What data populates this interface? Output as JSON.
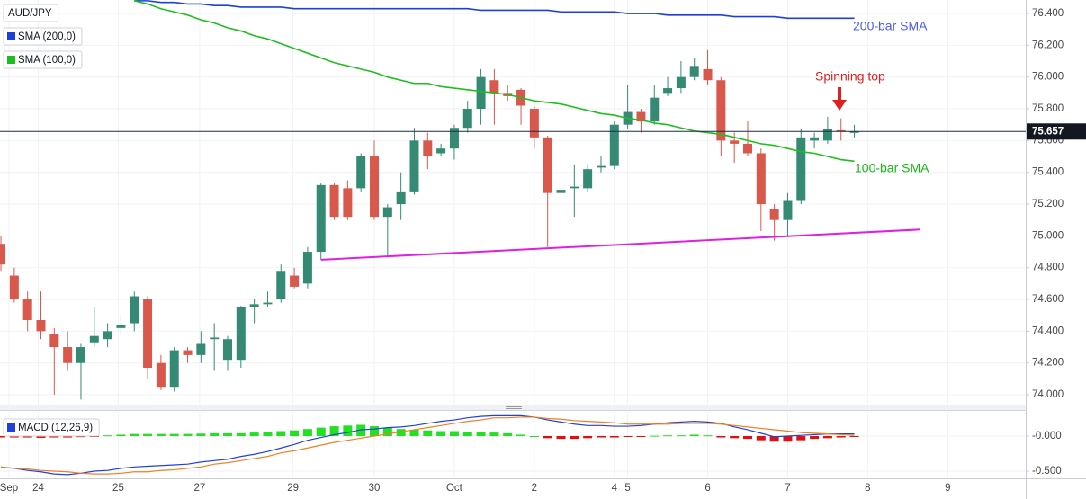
{
  "chart_data": [
    {
      "type": "candlestick",
      "title": "AUD/JPY",
      "up_color": "#358a74",
      "down_color": "#d9584c",
      "xlim": [
        -0.07,
        76.85
      ],
      "xticks": [
        {
          "value": 0.6,
          "label": "Sep"
        },
        {
          "value": 2.8,
          "label": "24"
        },
        {
          "value": 8.8,
          "label": "25"
        },
        {
          "value": 14.9,
          "label": "27"
        },
        {
          "value": 21.9,
          "label": "29"
        },
        {
          "value": 28,
          "label": "30"
        },
        {
          "value": 34,
          "label": "Oct"
        },
        {
          "value": 40,
          "label": "2"
        },
        {
          "value": 46,
          "label": "4"
        },
        {
          "value": 47,
          "label": "5"
        },
        {
          "value": 53,
          "label": "6"
        },
        {
          "value": 59,
          "label": "7"
        },
        {
          "value": 65,
          "label": "8"
        },
        {
          "value": 71,
          "label": "9"
        }
      ],
      "ylim": [
        73.938,
        76.485
      ],
      "yticks": [
        {
          "value": 74.0,
          "label": "74.000"
        },
        {
          "value": 74.2,
          "label": "74.200"
        },
        {
          "value": 74.4,
          "label": "74.400"
        },
        {
          "value": 74.6,
          "label": "74.600"
        },
        {
          "value": 74.8,
          "label": "74.800"
        },
        {
          "value": 75.0,
          "label": "75.000"
        },
        {
          "value": 75.2,
          "label": "75.200"
        },
        {
          "value": 75.4,
          "label": "75.400"
        },
        {
          "value": 75.6,
          "label": "75.600"
        },
        {
          "value": 75.8,
          "label": "75.800"
        },
        {
          "value": 76.0,
          "label": "76.000"
        },
        {
          "value": 76.2,
          "label": "76.200"
        },
        {
          "value": 76.4,
          "label": "76.400"
        }
      ],
      "grid": true,
      "open": [
        74.95,
        74.75,
        74.6,
        74.47,
        74.38,
        74.3,
        74.2,
        74.33,
        74.35,
        74.42,
        74.45,
        74.6,
        74.2,
        74.05,
        74.28,
        74.25,
        74.35,
        74.22,
        74.22,
        74.55,
        74.57,
        74.6,
        74.75,
        74.7,
        74.9,
        75.32,
        75.3,
        75.3,
        75.5,
        75.12,
        75.2,
        75.28,
        75.6,
        75.52,
        75.55,
        75.68,
        75.8,
        75.98,
        75.9,
        75.92,
        75.8,
        75.62,
        75.27,
        75.3,
        75.3,
        75.43,
        75.44,
        75.7,
        75.78,
        75.72,
        75.9,
        75.93,
        76.0,
        76.05,
        75.98,
        75.6,
        75.58,
        75.52,
        75.17,
        75.1,
        75.22,
        75.6,
        75.6,
        75.665,
        75.65
      ],
      "high": [
        75.0,
        74.8,
        74.65,
        74.65,
        74.42,
        74.4,
        74.32,
        74.55,
        74.45,
        74.5,
        74.65,
        74.62,
        74.25,
        74.3,
        74.3,
        74.4,
        74.45,
        74.37,
        74.56,
        74.6,
        74.65,
        74.82,
        74.8,
        74.93,
        75.33,
        75.33,
        75.35,
        75.52,
        75.6,
        75.2,
        75.4,
        75.68,
        75.65,
        75.58,
        75.7,
        75.85,
        76.05,
        76.05,
        75.95,
        75.93,
        75.82,
        75.63,
        75.35,
        75.45,
        75.45,
        75.5,
        75.72,
        75.95,
        75.8,
        75.95,
        76.0,
        76.1,
        76.12,
        76.17,
        76.0,
        75.65,
        75.72,
        75.55,
        75.2,
        75.27,
        75.67,
        75.65,
        75.75,
        75.74,
        75.7
      ],
      "low": [
        74.78,
        74.58,
        74.4,
        74.35,
        74.0,
        74.15,
        73.97,
        74.3,
        74.3,
        74.38,
        74.4,
        74.1,
        74.03,
        74.02,
        74.2,
        74.2,
        74.15,
        74.15,
        74.17,
        74.45,
        74.55,
        74.58,
        74.67,
        74.67,
        74.85,
        75.1,
        75.1,
        75.28,
        75.1,
        74.87,
        75.1,
        75.26,
        75.42,
        75.5,
        75.48,
        75.65,
        75.7,
        75.7,
        75.85,
        75.7,
        75.55,
        74.93,
        75.1,
        75.12,
        75.28,
        75.4,
        75.42,
        75.67,
        75.65,
        75.7,
        75.88,
        75.9,
        75.98,
        75.95,
        75.5,
        75.46,
        75.5,
        75.03,
        74.97,
        75.0,
        75.2,
        75.55,
        75.58,
        75.6,
        75.62
      ],
      "close": [
        74.82,
        74.6,
        74.47,
        74.4,
        74.3,
        74.2,
        74.3,
        74.37,
        74.4,
        74.44,
        74.62,
        74.17,
        74.05,
        74.28,
        74.25,
        74.32,
        74.36,
        74.35,
        74.55,
        74.57,
        74.58,
        74.78,
        74.68,
        74.9,
        75.32,
        75.12,
        75.12,
        75.5,
        75.12,
        75.18,
        75.28,
        75.6,
        75.5,
        75.55,
        75.68,
        75.8,
        76.0,
        75.9,
        75.88,
        75.82,
        75.62,
        75.27,
        75.29,
        75.31,
        75.42,
        75.44,
        75.7,
        75.78,
        75.72,
        75.87,
        75.93,
        76.0,
        76.07,
        75.98,
        75.6,
        75.58,
        75.52,
        75.2,
        75.1,
        75.22,
        75.62,
        75.62,
        75.67,
        75.655,
        75.657
      ],
      "series": [
        {
          "name": "SMA (200,0)",
          "color": "#1e3fd8",
          "values": [
            null,
            null,
            null,
            null,
            null,
            null,
            null,
            null,
            null,
            null,
            76.48,
            76.48,
            76.47,
            76.47,
            76.46,
            76.46,
            76.45,
            76.45,
            76.44,
            76.44,
            76.44,
            76.44,
            76.43,
            76.43,
            76.43,
            76.43,
            76.43,
            76.43,
            76.43,
            76.43,
            76.43,
            76.43,
            76.43,
            76.43,
            76.43,
            76.43,
            76.42,
            76.42,
            76.42,
            76.42,
            76.42,
            76.42,
            76.41,
            76.41,
            76.41,
            76.41,
            76.41,
            76.4,
            76.4,
            76.4,
            76.39,
            76.39,
            76.39,
            76.39,
            76.39,
            76.38,
            76.38,
            76.38,
            76.38,
            76.37,
            76.37,
            76.37,
            76.37,
            76.37,
            76.37
          ]
        },
        {
          "name": "SMA (100,0)",
          "color": "#1fbe1f",
          "values": [
            null,
            null,
            null,
            null,
            null,
            null,
            null,
            null,
            null,
            null,
            76.48,
            76.46,
            76.43,
            76.41,
            76.39,
            76.36,
            76.34,
            76.31,
            76.29,
            76.26,
            76.24,
            76.21,
            76.18,
            76.15,
            76.12,
            76.09,
            76.07,
            76.05,
            76.03,
            76.0,
            75.98,
            75.96,
            75.96,
            75.94,
            75.93,
            75.92,
            75.91,
            75.9,
            75.89,
            75.87,
            75.85,
            75.84,
            75.83,
            75.81,
            75.79,
            75.77,
            75.76,
            75.74,
            75.73,
            75.71,
            75.7,
            75.68,
            75.66,
            75.65,
            75.64,
            75.62,
            75.6,
            75.58,
            75.57,
            75.55,
            75.53,
            75.52,
            75.5,
            75.48,
            75.47
          ]
        }
      ],
      "trendlines": [
        {
          "color": "#e020e0",
          "x": [
            24.0,
            68.9
          ],
          "values": [
            74.85,
            75.04
          ]
        }
      ],
      "last_price": 75.657,
      "annotations": [
        {
          "text": "200-bar SMA",
          "color": "#4a5cf0"
        },
        {
          "text": "100-bar SMA",
          "color": "#18b818"
        },
        {
          "text": "Spinning top",
          "color": "#e02020"
        }
      ]
    },
    {
      "type": "macd",
      "title": "MACD (12,26,9)",
      "xlim": [
        -0.07,
        76.85
      ],
      "ylim": [
        -0.577,
        0.346
      ],
      "yticks": [
        {
          "value": 0,
          "label": "-0.000"
        },
        {
          "value": -0.5,
          "label": "-0.500"
        }
      ],
      "grid": true,
      "histogram": {
        "up_color": "#22e022",
        "down_color": "#e01010",
        "values": [
          -0.02,
          -0.02,
          -0.02,
          -0.025,
          -0.02,
          -0.02,
          -0.015,
          -0.01,
          0.01,
          0.02,
          0.03,
          0.03,
          0.03,
          0.03,
          0.03,
          0.035,
          0.04,
          0.04,
          0.04,
          0.05,
          0.06,
          0.07,
          0.08,
          0.1,
          0.12,
          0.14,
          0.15,
          0.16,
          0.14,
          0.12,
          0.1,
          0.09,
          0.08,
          0.07,
          0.07,
          0.06,
          0.06,
          0.05,
          0.04,
          0.02,
          0.0,
          -0.03,
          -0.04,
          -0.04,
          -0.03,
          -0.02,
          -0.02,
          -0.01,
          -0.005,
          0.005,
          0.01,
          0.01,
          0.02,
          0.01,
          -0.02,
          -0.03,
          -0.04,
          -0.06,
          -0.08,
          -0.08,
          -0.06,
          -0.04,
          -0.03,
          -0.02,
          -0.01
        ]
      },
      "series": [
        {
          "color": "#2040e0",
          "values": [
            -0.44,
            -0.46,
            -0.49,
            -0.51,
            -0.54,
            -0.55,
            -0.53,
            -0.5,
            -0.49,
            -0.46,
            -0.44,
            -0.43,
            -0.42,
            -0.41,
            -0.4,
            -0.37,
            -0.35,
            -0.33,
            -0.29,
            -0.26,
            -0.22,
            -0.17,
            -0.12,
            -0.06,
            -0.02,
            0.02,
            0.05,
            0.09,
            0.1,
            0.12,
            0.13,
            0.15,
            0.18,
            0.21,
            0.23,
            0.26,
            0.28,
            0.29,
            0.29,
            0.29,
            0.27,
            0.23,
            0.2,
            0.17,
            0.15,
            0.15,
            0.14,
            0.14,
            0.15,
            0.17,
            0.19,
            0.2,
            0.21,
            0.2,
            0.18,
            0.13,
            0.09,
            0.04,
            -0.01,
            0.0,
            0.01,
            0.02,
            0.03,
            0.03,
            0.03
          ]
        },
        {
          "color": "#f08020",
          "values": [
            -0.44,
            -0.46,
            -0.47,
            -0.49,
            -0.5,
            -0.51,
            -0.53,
            -0.54,
            -0.54,
            -0.53,
            -0.51,
            -0.51,
            -0.49,
            -0.48,
            -0.46,
            -0.44,
            -0.4,
            -0.38,
            -0.35,
            -0.32,
            -0.29,
            -0.24,
            -0.21,
            -0.17,
            -0.13,
            -0.09,
            -0.06,
            -0.03,
            0.0,
            0.03,
            0.06,
            0.09,
            0.12,
            0.15,
            0.18,
            0.21,
            0.23,
            0.26,
            0.26,
            0.27,
            0.27,
            0.25,
            0.24,
            0.22,
            0.21,
            0.2,
            0.19,
            0.17,
            0.17,
            0.17,
            0.17,
            0.18,
            0.18,
            0.18,
            0.17,
            0.15,
            0.13,
            0.11,
            0.09,
            0.07,
            0.05,
            0.04,
            0.03,
            0.02,
            0.01
          ]
        }
      ]
    }
  ]
}
